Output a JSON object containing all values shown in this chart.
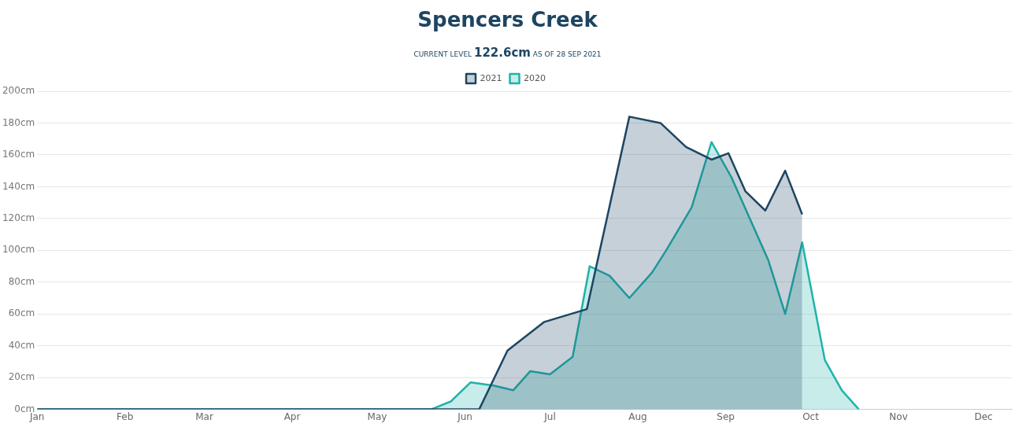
{
  "chart_data": {
    "type": "area",
    "title": "Spencers Creek",
    "subtitle": "CURRENT LEVEL 122.6cm AS OF 28 SEP 2021",
    "xlim": [
      "--01-01",
      "--12-11"
    ],
    "xticks": [
      {
        "value": "--01-01",
        "label": "Jan"
      },
      {
        "value": "--02-01",
        "label": "Feb"
      },
      {
        "value": "--03-01",
        "label": "Mar"
      },
      {
        "value": "--04-01",
        "label": "Apr"
      },
      {
        "value": "--05-01",
        "label": "May"
      },
      {
        "value": "--06-01",
        "label": "Jun"
      },
      {
        "value": "--07-01",
        "label": "Jul"
      },
      {
        "value": "--08-01",
        "label": "Aug"
      },
      {
        "value": "--09-01",
        "label": "Sep"
      },
      {
        "value": "--10-01",
        "label": "Oct"
      },
      {
        "value": "--11-01",
        "label": "Nov"
      },
      {
        "value": "--12-01",
        "label": "Dec"
      }
    ],
    "ylim": [
      0,
      200
    ],
    "yticks": [
      {
        "value": 0,
        "label": "0cm"
      },
      {
        "value": 20,
        "label": "20cm"
      },
      {
        "value": 40,
        "label": "40cm"
      },
      {
        "value": 60,
        "label": "60cm"
      },
      {
        "value": 80,
        "label": "80cm"
      },
      {
        "value": 100,
        "label": "100cm"
      },
      {
        "value": 120,
        "label": "120cm"
      },
      {
        "value": 140,
        "label": "140cm"
      },
      {
        "value": 160,
        "label": "160cm"
      },
      {
        "value": 180,
        "label": "180cm"
      },
      {
        "value": 200,
        "label": "200cm"
      }
    ],
    "grid": "y",
    "legend": "top",
    "marker": "none",
    "line_style": "solid",
    "series": [
      {
        "name": "2021",
        "color": "#1d4562",
        "x": [
          "--01-01",
          "--06-06",
          "--06-16",
          "--06-29",
          "--07-14",
          "--07-29",
          "--08-09",
          "--08-18",
          "--08-27",
          "--09-02",
          "--09-08",
          "--09-15",
          "--09-22",
          "--09-28"
        ],
        "values": [
          0,
          0,
          37,
          55,
          63,
          184,
          180,
          165,
          157,
          161,
          137,
          125,
          150,
          122.6
        ]
      },
      {
        "name": "2020",
        "color": "#20b2aa",
        "x": [
          "--01-01",
          "--05-20",
          "--05-27",
          "--06-03",
          "--06-11",
          "--06-18",
          "--06-24",
          "--07-01",
          "--07-09",
          "--07-15",
          "--07-22",
          "--07-29",
          "--08-06",
          "--08-11",
          "--08-20",
          "--08-27",
          "--09-03",
          "--09-16",
          "--09-22",
          "--09-28",
          "--10-06",
          "--10-12",
          "--10-18"
        ],
        "values": [
          0,
          0,
          5,
          17,
          15,
          12,
          24,
          22,
          33,
          90,
          84,
          70,
          86,
          100,
          127,
          168,
          146,
          94,
          60,
          105,
          31,
          12,
          0
        ]
      }
    ]
  }
}
